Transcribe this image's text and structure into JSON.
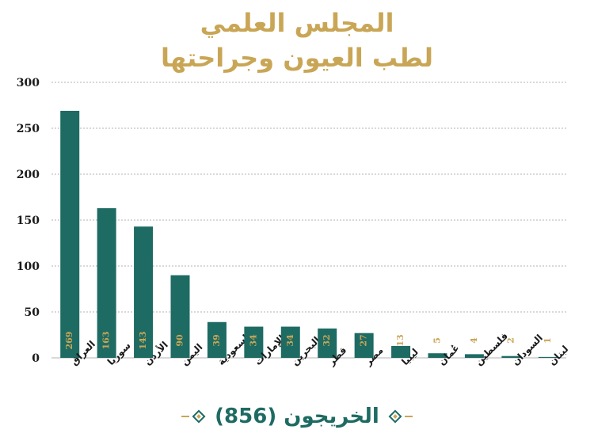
{
  "title": {
    "line1": "المجلس العلمي",
    "line2": "لطب العيون وجراحتها"
  },
  "footer": {
    "text": "الخريجون (856)"
  },
  "colors": {
    "bar": "#1e6b63",
    "title": "#c9a656",
    "data_label": "#c9a656",
    "grid": "#b3b3b3",
    "axis_text": "#1a1a1a"
  },
  "chart_data": {
    "type": "bar",
    "categories": [
      "العراق",
      "سوريا",
      "الأردن",
      "اليمن",
      "السعودية",
      "الإمارات",
      "البحرين",
      "قطر",
      "مصر",
      "ليبيا",
      "عُمان",
      "فلسطين",
      "السودان",
      "لبنان"
    ],
    "values": [
      269,
      163,
      143,
      90,
      39,
      34,
      34,
      32,
      27,
      13,
      5,
      4,
      2,
      1
    ],
    "ylim": [
      0,
      300
    ],
    "yticks": [
      0,
      50,
      100,
      150,
      200,
      250,
      300
    ],
    "grid": true,
    "title": "",
    "xlabel": "",
    "ylabel": ""
  }
}
